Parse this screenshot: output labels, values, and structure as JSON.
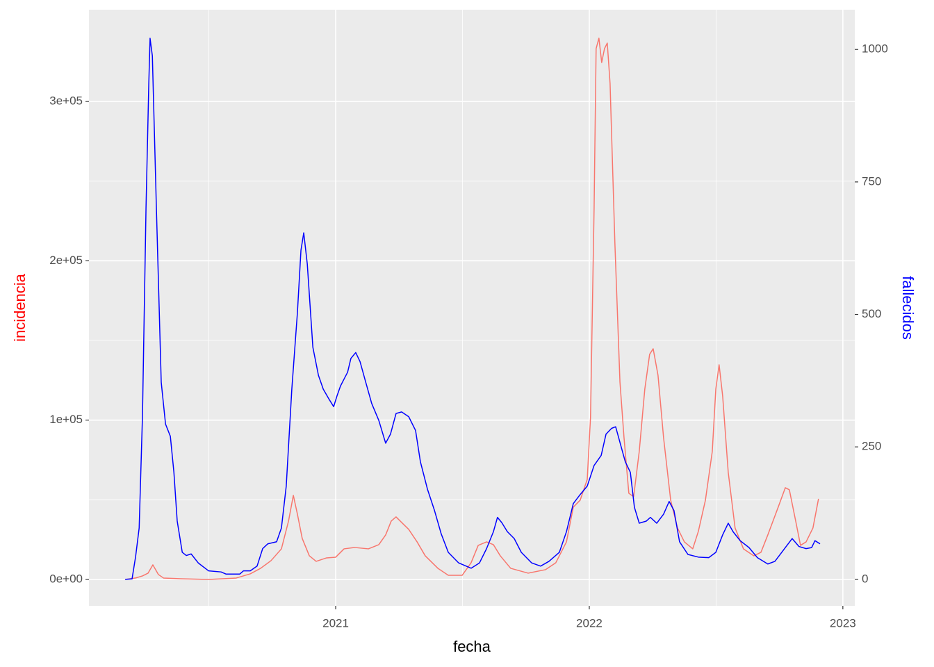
{
  "chart_data": {
    "type": "line",
    "x_label": "fecha",
    "y_label": "incidencia",
    "y_label_color": "red",
    "y2_label": "fallecidos",
    "y2_label_color": "blue",
    "panel_color": "#ebebeb",
    "grid": true,
    "xlim": [
      2020.027,
      2023.047
    ],
    "ylim": [
      -16600,
      357600
    ],
    "y2lim": [
      -50,
      1075
    ],
    "xticks": [
      2021,
      2022,
      2023
    ],
    "x_minor_ticks": [
      2020.5,
      2021.5,
      2022.5
    ],
    "yticks": [
      {
        "value": 0,
        "label": "0e+00"
      },
      {
        "value": 100000,
        "label": "1e+05"
      },
      {
        "value": 200000,
        "label": "2e+05"
      },
      {
        "value": 300000,
        "label": "3e+05"
      }
    ],
    "y_minor_ticks": [
      50000,
      150000,
      250000
    ],
    "y2ticks": [
      0,
      250,
      500,
      750,
      1000
    ],
    "series": [
      {
        "color": "#f8766d",
        "axis": "y",
        "x": [
          2020.17,
          2020.211,
          2020.238,
          2020.26,
          2020.279,
          2020.301,
          2020.321,
          2020.389,
          2020.499,
          2020.608,
          2020.663,
          2020.704,
          2020.745,
          2020.786,
          2020.814,
          2020.833,
          2020.849,
          2020.868,
          2020.896,
          2020.923,
          2020.964,
          2021.0,
          2021.033,
          2021.074,
          2021.101,
          2021.129,
          2021.17,
          2021.197,
          2021.219,
          2021.238,
          2021.26,
          2021.288,
          2021.321,
          2021.353,
          2021.403,
          2021.444,
          2021.499,
          2021.534,
          2021.562,
          2021.595,
          2021.622,
          2021.649,
          2021.69,
          2021.759,
          2021.827,
          2021.868,
          2021.91,
          2021.937,
          2021.964,
          2021.992,
          2022.005,
          2022.019,
          2022.027,
          2022.038,
          2022.049,
          2022.06,
          2022.071,
          2022.082,
          2022.101,
          2022.121,
          2022.137,
          2022.156,
          2022.175,
          2022.197,
          2022.219,
          2022.238,
          2022.252,
          2022.271,
          2022.293,
          2022.321,
          2022.348,
          2022.375,
          2022.408,
          2022.43,
          2022.458,
          2022.485,
          2022.499,
          2022.512,
          2022.526,
          2022.548,
          2022.575,
          2022.608,
          2022.649,
          2022.677,
          2022.704,
          2022.745,
          2022.773,
          2022.789,
          2022.814,
          2022.833,
          2022.855,
          2022.882,
          2022.904
        ],
        "values": [
          0,
          900,
          2180,
          3925,
          9158,
          3053,
          872,
          436,
          0,
          872,
          3489,
          6978,
          11775,
          19188,
          36632,
          52768,
          40993,
          25730,
          14827,
          11339,
          13519,
          13955,
          19188,
          20061,
          19624,
          19188,
          21805,
          27910,
          36632,
          39249,
          35760,
          31399,
          23549,
          14827,
          6978,
          2617,
          2617,
          10466,
          21369,
          23549,
          21805,
          14827,
          6978,
          3925,
          6105,
          10466,
          23549,
          45354,
          49715,
          62798,
          102047,
          232877,
          333180,
          339722,
          324458,
          333180,
          336669,
          311371,
          211072,
          123852,
          88964,
          54076,
          51896,
          80242,
          119491,
          141296,
          144785,
          128213,
          88964,
          49715,
          32271,
          23549,
          19188,
          30091,
          49715,
          80242,
          119491,
          134755,
          115130,
          67159,
          32271,
          19188,
          14827,
          17008,
          27910,
          45354,
          57565,
          56257,
          36632,
          21369,
          23549,
          32271,
          50588
        ]
      },
      {
        "color": "#0000ff",
        "axis": "y2",
        "x": [
          2020.17,
          2020.197,
          2020.211,
          2020.225,
          2020.238,
          2020.252,
          2020.263,
          2020.268,
          2020.277,
          2020.293,
          2020.312,
          2020.329,
          2020.348,
          2020.362,
          2020.375,
          2020.395,
          2020.411,
          2020.43,
          2020.458,
          2020.499,
          2020.548,
          2020.567,
          2020.622,
          2020.636,
          2020.663,
          2020.69,
          2020.712,
          2020.732,
          2020.767,
          2020.786,
          2020.805,
          2020.827,
          2020.849,
          2020.863,
          2020.874,
          2020.888,
          2020.91,
          2020.932,
          2020.951,
          2020.975,
          2020.992,
          2021.005,
          2021.019,
          2021.033,
          2021.047,
          2021.06,
          2021.079,
          2021.096,
          2021.115,
          2021.142,
          2021.17,
          2021.197,
          2021.216,
          2021.238,
          2021.26,
          2021.288,
          2021.315,
          2021.334,
          2021.362,
          2021.389,
          2021.416,
          2021.444,
          2021.485,
          2021.534,
          2021.567,
          2021.595,
          2021.622,
          2021.638,
          2021.655,
          2021.677,
          2021.704,
          2021.732,
          2021.773,
          2021.808,
          2021.841,
          2021.882,
          2021.91,
          2021.937,
          2021.964,
          2021.992,
          2022.019,
          2022.047,
          2022.066,
          2022.088,
          2022.104,
          2022.123,
          2022.142,
          2022.162,
          2022.178,
          2022.197,
          2022.225,
          2022.241,
          2022.266,
          2022.293,
          2022.315,
          2022.334,
          2022.356,
          2022.389,
          2022.43,
          2022.471,
          2022.499,
          2022.526,
          2022.548,
          2022.567,
          2022.595,
          2022.63,
          2022.663,
          2022.704,
          2022.732,
          2022.759,
          2022.8,
          2022.827,
          2022.855,
          2022.877,
          2022.89,
          2022.91
        ],
        "values": [
          0,
          1,
          43,
          97,
          307,
          700,
          936,
          1021,
          988,
          700,
          372,
          293,
          270,
          202,
          110,
          51,
          45,
          48,
          31,
          16,
          14,
          10,
          10,
          16,
          16,
          25,
          58,
          67,
          71,
          97,
          176,
          359,
          503,
          621,
          654,
          595,
          438,
          385,
          359,
          339,
          326,
          346,
          365,
          378,
          391,
          417,
          428,
          411,
          378,
          332,
          300,
          257,
          274,
          313,
          316,
          307,
          281,
          222,
          170,
          131,
          86,
          51,
          31,
          21,
          31,
          58,
          90,
          117,
          107,
          90,
          77,
          51,
          31,
          25,
          34,
          51,
          90,
          143,
          160,
          176,
          215,
          234,
          274,
          285,
          288,
          255,
          222,
          202,
          136,
          106,
          110,
          117,
          106,
          123,
          147,
          130,
          71,
          47,
          42,
          41,
          51,
          84,
          106,
          90,
          73,
          60,
          41,
          29,
          34,
          51,
          77,
          62,
          58,
          60,
          73,
          67
        ]
      }
    ]
  }
}
